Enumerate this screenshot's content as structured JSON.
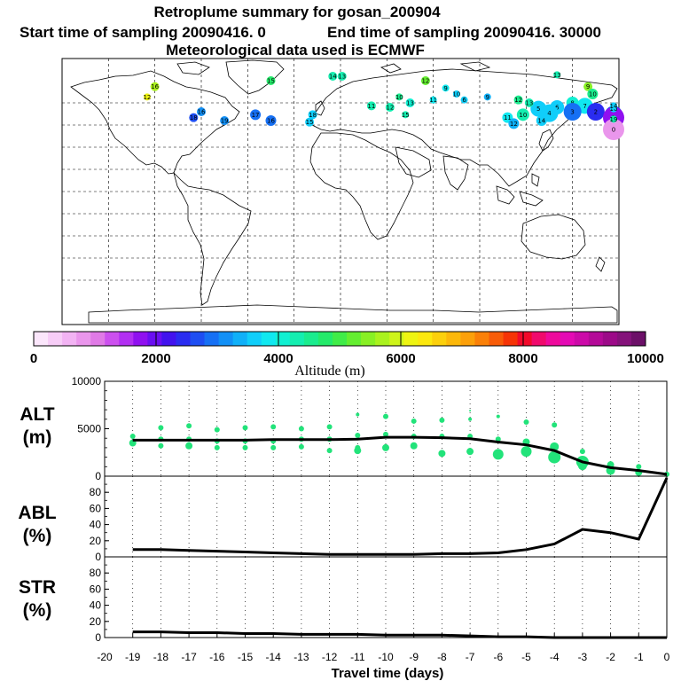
{
  "header": {
    "title": "Retroplume summary for gosan_200904",
    "start_label": "Start time of sampling 20090416.    0",
    "end_label": "End time of sampling 20090416. 30000",
    "met_label": "Meteorological data used is ECMWF"
  },
  "map": {
    "name": "world map of retroplume cluster positions",
    "clusters": [
      {
        "label": "13",
        "lon": 1,
        "lat": 78,
        "alt": 4300,
        "r": 5
      },
      {
        "label": "14",
        "lon": -5,
        "lat": 78,
        "alt": 4200,
        "r": 5
      },
      {
        "label": "15",
        "lon": -45,
        "lat": 75,
        "alt": 4700,
        "r": 5
      },
      {
        "label": "16",
        "lon": -120,
        "lat": 71,
        "alt": 5800,
        "r": 5
      },
      {
        "label": "12",
        "lon": 55,
        "lat": 75,
        "alt": 5200,
        "r": 5
      },
      {
        "label": "13",
        "lon": 140,
        "lat": 79,
        "alt": 4300,
        "r": 4
      },
      {
        "label": "12",
        "lon": -125,
        "lat": 64,
        "alt": 6200,
        "r": 4
      },
      {
        "label": "9",
        "lon": 68,
        "lat": 70,
        "alt": 3800,
        "r": 4
      },
      {
        "label": "10",
        "lon": 75,
        "lat": 66,
        "alt": 3600,
        "r": 4
      },
      {
        "label": "11",
        "lon": 60,
        "lat": 62,
        "alt": 3900,
        "r": 4
      },
      {
        "label": "6",
        "lon": 80,
        "lat": 62,
        "alt": 3500,
        "r": 4
      },
      {
        "label": "9",
        "lon": 95,
        "lat": 64,
        "alt": 3300,
        "r": 4
      },
      {
        "label": "9",
        "lon": 160,
        "lat": 71,
        "alt": 5500,
        "r": 5
      },
      {
        "label": "10",
        "lon": 163,
        "lat": 66,
        "alt": 4500,
        "r": 6
      },
      {
        "label": "8",
        "lon": 150,
        "lat": 60,
        "alt": 4000,
        "r": 7
      },
      {
        "label": "7",
        "lon": 158,
        "lat": 58,
        "alt": 3800,
        "r": 9
      },
      {
        "label": "6",
        "lon": 140,
        "lat": 57,
        "alt": 3700,
        "r": 8
      },
      {
        "label": "5",
        "lon": 128,
        "lat": 56,
        "alt": 3600,
        "r": 9
      },
      {
        "label": "4",
        "lon": 135,
        "lat": 53,
        "alt": 3500,
        "r": 10
      },
      {
        "label": "3",
        "lon": 150,
        "lat": 54,
        "alt": 3000,
        "r": 10
      },
      {
        "label": "2",
        "lon": 165,
        "lat": 54,
        "alt": 2400,
        "r": 10
      },
      {
        "label": "1",
        "lon": 182,
        "lat": 52,
        "alt": 2600,
        "r": 10
      },
      {
        "label": "1",
        "lon": 196,
        "lat": 50,
        "alt": 1800,
        "r": 12
      },
      {
        "label": "0",
        "lon": 191,
        "lat": 42,
        "alt": 900,
        "r": 12
      },
      {
        "label": "10",
        "lon": 118,
        "lat": 52,
        "alt": 4300,
        "r": 7
      },
      {
        "label": "11",
        "lon": 108,
        "lat": 50,
        "alt": 3800,
        "r": 6
      },
      {
        "label": "14",
        "lon": 130,
        "lat": 48,
        "alt": 3700,
        "r": 6
      },
      {
        "label": "12",
        "lon": 112,
        "lat": 46,
        "alt": 3300,
        "r": 6
      },
      {
        "label": "12",
        "lon": 115,
        "lat": 62,
        "alt": 4500,
        "r": 5
      },
      {
        "label": "13",
        "lon": 122,
        "lat": 60,
        "alt": 4300,
        "r": 5
      },
      {
        "label": "17",
        "lon": -55,
        "lat": 52,
        "alt": 2900,
        "r": 6
      },
      {
        "label": "16",
        "lon": -90,
        "lat": 54,
        "alt": 3200,
        "r": 5
      },
      {
        "label": "18",
        "lon": -95,
        "lat": 50,
        "alt": 2700,
        "r": 5
      },
      {
        "label": "19",
        "lon": -75,
        "lat": 48,
        "alt": 3100,
        "r": 5
      },
      {
        "label": "18",
        "lon": -18,
        "lat": 52,
        "alt": 3700,
        "r": 5
      },
      {
        "label": "16",
        "lon": -45,
        "lat": 48,
        "alt": 3000,
        "r": 6
      },
      {
        "label": "15",
        "lon": -20,
        "lat": 47,
        "alt": 3600,
        "r": 5
      },
      {
        "label": "11",
        "lon": 20,
        "lat": 58,
        "alt": 4300,
        "r": 5
      },
      {
        "label": "12",
        "lon": 32,
        "lat": 57,
        "alt": 4400,
        "r": 5
      },
      {
        "label": "13",
        "lon": 45,
        "lat": 60,
        "alt": 4100,
        "r": 5
      },
      {
        "label": "10",
        "lon": 38,
        "lat": 64,
        "alt": 4600,
        "r": 4
      },
      {
        "label": "15",
        "lon": 42,
        "lat": 52,
        "alt": 4400,
        "r": 4
      },
      {
        "label": "19",
        "lon": 245,
        "lat": 49,
        "alt": 4200,
        "r": 4
      },
      {
        "label": "16",
        "lon": 222,
        "lat": 56,
        "alt": 3500,
        "r": 4
      },
      {
        "label": "14",
        "lon": 212,
        "lat": 58,
        "alt": 3700,
        "r": 4
      }
    ]
  },
  "colorbar": {
    "ticks": [
      "0",
      "2000",
      "4000",
      "6000",
      "8000",
      "10000"
    ],
    "label": "Altitude (m)",
    "colors": [
      "#fbe6fb",
      "#f7cdf7",
      "#f2b3f3",
      "#ea96ec",
      "#e07ae6",
      "#cc50ee",
      "#b22ff2",
      "#9010f0",
      "#6a0ef2",
      "#4212ee",
      "#2a2cf0",
      "#1e4ef2",
      "#1670f4",
      "#1290f6",
      "#10b0f8",
      "#10cefa",
      "#10e8f0",
      "#10f0d2",
      "#14eeb0",
      "#1aec8e",
      "#24ea6a",
      "#40ec48",
      "#64ee30",
      "#88f024",
      "#aaf21e",
      "#cef41a",
      "#eef412",
      "#fce80e",
      "#fcd00c",
      "#fcb80a",
      "#fca00a",
      "#fa8008",
      "#f85c08",
      "#f63406",
      "#f20a2a",
      "#f00a6c",
      "#ee0a9c",
      "#e40ab4",
      "#cc0aa8",
      "#b40a98",
      "#9c0a88",
      "#84127a",
      "#6c1068"
    ]
  },
  "chart_data": [
    {
      "type": "scatter",
      "title": "ALT (m)",
      "panel_label_top": "ALT",
      "panel_label_bottom": "(m)",
      "xlabel": "Travel time (days)",
      "ylabel": "ALT (m)",
      "xlim": [
        -20,
        0
      ],
      "ylim": [
        0,
        10000
      ],
      "yticks": [
        "0",
        "5000",
        "10000"
      ],
      "grid": true,
      "mean_line": {
        "x": [
          -19,
          -18,
          -17,
          -16,
          -15,
          -14,
          -13,
          -12,
          -11,
          -10,
          -9,
          -8,
          -7,
          -6,
          -5,
          -4,
          -3,
          -2,
          -1,
          0
        ],
        "y": [
          3800,
          3800,
          3800,
          3800,
          3800,
          3850,
          3850,
          3850,
          3900,
          4100,
          4100,
          4050,
          3950,
          3600,
          3300,
          2700,
          1500,
          900,
          600,
          200
        ]
      },
      "points": [
        {
          "x": -19,
          "y": 4200,
          "s": 3
        },
        {
          "x": -19,
          "y": 3500,
          "s": 4
        },
        {
          "x": -18,
          "y": 5100,
          "s": 3
        },
        {
          "x": -18,
          "y": 3900,
          "s": 3
        },
        {
          "x": -18,
          "y": 3200,
          "s": 3
        },
        {
          "x": -17,
          "y": 5300,
          "s": 3
        },
        {
          "x": -17,
          "y": 3900,
          "s": 3
        },
        {
          "x": -17,
          "y": 3200,
          "s": 4
        },
        {
          "x": -16,
          "y": 4900,
          "s": 3
        },
        {
          "x": -16,
          "y": 3700,
          "s": 3
        },
        {
          "x": -16,
          "y": 3000,
          "s": 3
        },
        {
          "x": -15,
          "y": 5100,
          "s": 3
        },
        {
          "x": -15,
          "y": 3700,
          "s": 3
        },
        {
          "x": -15,
          "y": 3000,
          "s": 3
        },
        {
          "x": -14,
          "y": 5200,
          "s": 3
        },
        {
          "x": -14,
          "y": 3700,
          "s": 3
        },
        {
          "x": -14,
          "y": 3000,
          "s": 3
        },
        {
          "x": -13,
          "y": 5000,
          "s": 3
        },
        {
          "x": -13,
          "y": 3900,
          "s": 3
        },
        {
          "x": -13,
          "y": 3100,
          "s": 3
        },
        {
          "x": -12,
          "y": 5200,
          "s": 3
        },
        {
          "x": -12,
          "y": 3900,
          "s": 3
        },
        {
          "x": -12,
          "y": 2700,
          "s": 3
        },
        {
          "x": -11,
          "y": 6500,
          "s": 2
        },
        {
          "x": -11,
          "y": 4300,
          "s": 3
        },
        {
          "x": -11,
          "y": 3000,
          "s": 3
        },
        {
          "x": -11,
          "y": 2700,
          "s": 4
        },
        {
          "x": -10,
          "y": 6300,
          "s": 3
        },
        {
          "x": -10,
          "y": 4400,
          "s": 3
        },
        {
          "x": -10,
          "y": 3000,
          "s": 4
        },
        {
          "x": -9,
          "y": 5800,
          "s": 3
        },
        {
          "x": -9,
          "y": 4200,
          "s": 3
        },
        {
          "x": -9,
          "y": 3200,
          "s": 4
        },
        {
          "x": -8,
          "y": 5900,
          "s": 3
        },
        {
          "x": -8,
          "y": 4200,
          "s": 3
        },
        {
          "x": -8,
          "y": 2400,
          "s": 4
        },
        {
          "x": -7,
          "y": 6900,
          "s": 1
        },
        {
          "x": -7,
          "y": 6000,
          "s": 2
        },
        {
          "x": -7,
          "y": 4200,
          "s": 3
        },
        {
          "x": -7,
          "y": 2600,
          "s": 4
        },
        {
          "x": -6,
          "y": 6300,
          "s": 2
        },
        {
          "x": -6,
          "y": 3900,
          "s": 3
        },
        {
          "x": -6,
          "y": 2300,
          "s": 6
        },
        {
          "x": -5,
          "y": 5700,
          "s": 3
        },
        {
          "x": -5,
          "y": 3600,
          "s": 4
        },
        {
          "x": -5,
          "y": 2600,
          "s": 6
        },
        {
          "x": -4,
          "y": 5400,
          "s": 3
        },
        {
          "x": -4,
          "y": 3100,
          "s": 5
        },
        {
          "x": -4,
          "y": 2000,
          "s": 7
        },
        {
          "x": -3,
          "y": 2600,
          "s": 3
        },
        {
          "x": -3,
          "y": 1500,
          "s": 7
        },
        {
          "x": -3,
          "y": 1100,
          "s": 5
        },
        {
          "x": -2,
          "y": 1200,
          "s": 4
        },
        {
          "x": -2,
          "y": 600,
          "s": 5
        },
        {
          "x": -1,
          "y": 1000,
          "s": 3
        },
        {
          "x": -1,
          "y": 400,
          "s": 4
        },
        {
          "x": 0,
          "y": 200,
          "s": 3
        }
      ]
    },
    {
      "type": "line",
      "title": "ABL (%)",
      "panel_label_top": "ABL",
      "panel_label_bottom": "(%)",
      "xlabel": "Travel time (days)",
      "ylabel": "ABL (%)",
      "xlim": [
        -20,
        0
      ],
      "ylim": [
        0,
        100
      ],
      "yticks": [
        "0",
        "20",
        "40",
        "60",
        "80"
      ],
      "grid": true,
      "x": [
        -19,
        -18,
        -17,
        -16,
        -15,
        -14,
        -13,
        -12,
        -11,
        -10,
        -9,
        -8,
        -7,
        -6,
        -5,
        -4,
        -3,
        -2,
        -1,
        0
      ],
      "y": [
        9,
        9,
        8,
        7,
        6,
        5,
        4,
        3,
        3,
        3,
        3,
        4,
        4,
        5,
        9,
        16,
        34,
        30,
        22,
        98
      ]
    },
    {
      "type": "line",
      "title": "STR (%)",
      "panel_label_top": "STR",
      "panel_label_bottom": "(%)",
      "xlabel": "Travel time (days)",
      "ylabel": "STR (%)",
      "xlim": [
        -20,
        0
      ],
      "ylim": [
        0,
        100
      ],
      "yticks": [
        "0",
        "20",
        "40",
        "60",
        "80"
      ],
      "grid": true,
      "x": [
        -19,
        -18,
        -17,
        -16,
        -15,
        -14,
        -13,
        -12,
        -11,
        -10,
        -9,
        -8,
        -7,
        -6,
        -5,
        -4,
        -3,
        -2,
        -1,
        0
      ],
      "y": [
        7,
        7,
        6,
        6,
        5,
        5,
        4,
        4,
        4,
        3,
        3,
        3,
        2,
        1,
        1,
        0,
        0,
        0,
        0,
        0
      ]
    }
  ],
  "x_axis": {
    "ticks": [
      "-20",
      "-19",
      "-18",
      "-17",
      "-16",
      "-15",
      "-14",
      "-13",
      "-12",
      "-11",
      "-10",
      "-9",
      "-8",
      "-7",
      "-6",
      "-5",
      "-4",
      "-3",
      "-2",
      "-1",
      "0"
    ],
    "label": "Travel time (days)"
  },
  "style": {
    "point_color": "#22e37a",
    "line_color": "#000000"
  }
}
